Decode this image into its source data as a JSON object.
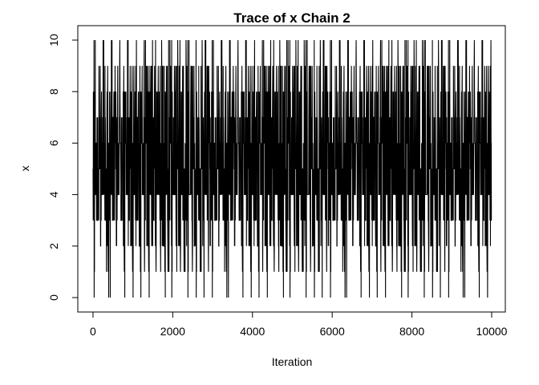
{
  "chart_data": {
    "type": "line",
    "title": "Trace of x Chain 2",
    "xlabel": "Iteration",
    "ylabel": "x",
    "xlim": [
      1,
      10000
    ],
    "ylim": [
      0,
      10
    ],
    "x_ticks": [
      0,
      2000,
      4000,
      6000,
      8000,
      10000
    ],
    "y_ticks": [
      0,
      2,
      4,
      6,
      8,
      10
    ],
    "x_tick_labels": [
      "0",
      "2000",
      "4000",
      "6000",
      "8000",
      "10000"
    ],
    "y_tick_labels": [
      "0",
      "2",
      "4",
      "6",
      "8",
      "10"
    ],
    "grid": false,
    "legend": "none",
    "line_color": "#000000",
    "series": [
      {
        "x_start": 1,
        "x_end": 10000,
        "x_step": 1,
        "values_summary": "integer-valued MCMC trace oscillating between 0 and 10, dense between about 1 and 9",
        "values": [
          5,
          2,
          3,
          5,
          8,
          4,
          6,
          3,
          9,
          5,
          1,
          7,
          4,
          6,
          8,
          2,
          5,
          3,
          10,
          6,
          4,
          7,
          3,
          5,
          9,
          2,
          6,
          4,
          8,
          5,
          3,
          7,
          1,
          6,
          4,
          9,
          5,
          2,
          8,
          6,
          3,
          5,
          7,
          4,
          10,
          2,
          6,
          5,
          3,
          8,
          4,
          0,
          6,
          7,
          5,
          3,
          9,
          4,
          6,
          2,
          8,
          5,
          7,
          3,
          4,
          6,
          1,
          9,
          5,
          3,
          7,
          6,
          4,
          8,
          2,
          5,
          10,
          3,
          6,
          4,
          7,
          5,
          2,
          9,
          6,
          3,
          8,
          4,
          5,
          1,
          7,
          6,
          3,
          9,
          4,
          5,
          8,
          2,
          6,
          7,
          3,
          5,
          10,
          4,
          6,
          2,
          8,
          5,
          3,
          7,
          4,
          0,
          6,
          9,
          5,
          2,
          7,
          4,
          8,
          3,
          6,
          5,
          1,
          9,
          4,
          7,
          6,
          3,
          8,
          5,
          2,
          10,
          4,
          6,
          7,
          3,
          5,
          9,
          2,
          6,
          4,
          8,
          5,
          3,
          7,
          1,
          6,
          4,
          9,
          5,
          2,
          8,
          6,
          3,
          5,
          7,
          4,
          10,
          2,
          6,
          5,
          3,
          8,
          4,
          0,
          6,
          7,
          5,
          3,
          9,
          4,
          6,
          2,
          8,
          5,
          7,
          3,
          4,
          6,
          1,
          9,
          5,
          3,
          7,
          6,
          4,
          8,
          2,
          5,
          10,
          3,
          6,
          4,
          7,
          5,
          2,
          9,
          6,
          3,
          8,
          4,
          5,
          1,
          7,
          6,
          3,
          9,
          4,
          5,
          8,
          2,
          6,
          7,
          3,
          5,
          10,
          4,
          6,
          2,
          8,
          5,
          3,
          7,
          4,
          0,
          6,
          9,
          5,
          2,
          7,
          4,
          8,
          3,
          6,
          5,
          1,
          9,
          4,
          7,
          6,
          3,
          8,
          5,
          2,
          10,
          4,
          6
        ]
      }
    ]
  }
}
